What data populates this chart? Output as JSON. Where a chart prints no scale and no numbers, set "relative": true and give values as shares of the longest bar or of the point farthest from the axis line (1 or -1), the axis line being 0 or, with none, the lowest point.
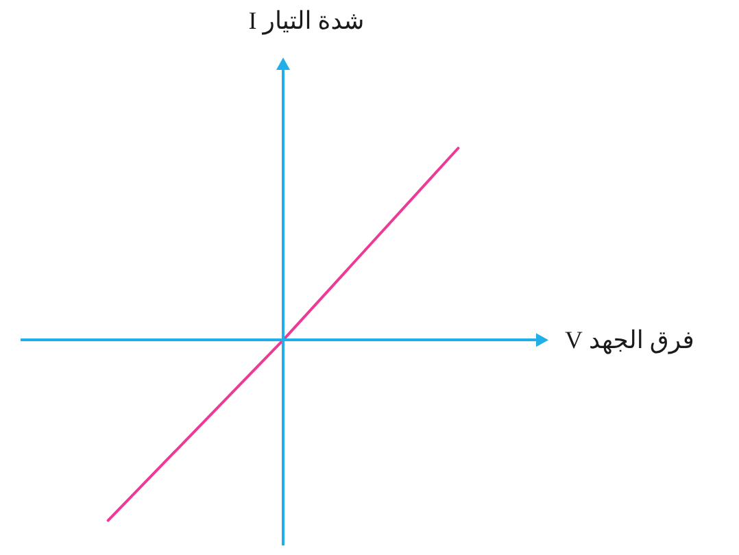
{
  "chart_data": {
    "type": "line",
    "xlabel": "فرق الجهد V",
    "ylabel": "شدة التيار I",
    "categories": [
      null,
      null,
      null
    ],
    "values": [
      -0.94,
      0,
      1
    ],
    "color": "#ec3b96",
    "ref_lines": [
      {
        "axis": "y",
        "value": 0,
        "color": "#22aee8"
      }
    ],
    "relative": true,
    "tick_labels": false
  }
}
